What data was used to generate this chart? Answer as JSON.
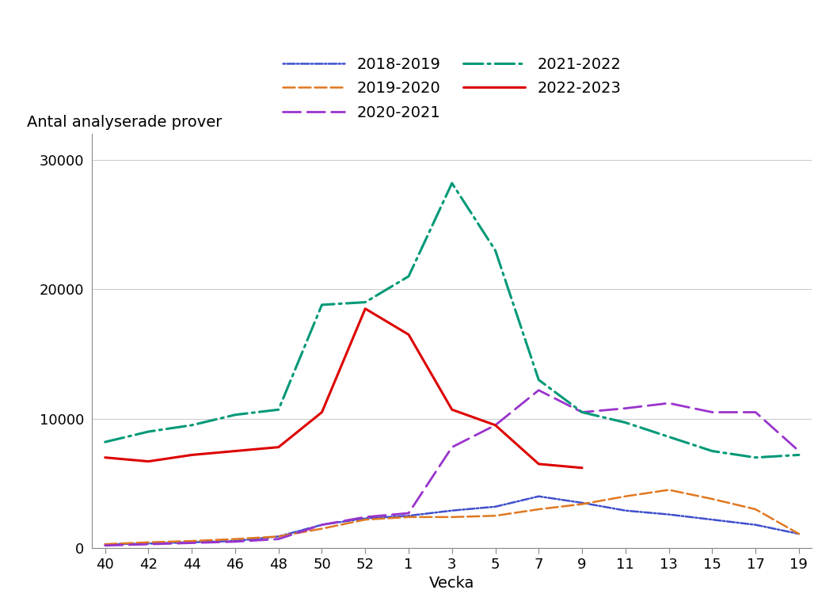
{
  "xlabel": "Vecka",
  "ylabel": "Antal analyserade prover",
  "ylim": [
    0,
    32000
  ],
  "yticks": [
    0,
    10000,
    20000,
    30000
  ],
  "ytick_labels": [
    "0",
    "10000",
    "20000",
    "30000"
  ],
  "x_labels": [
    "40",
    "42",
    "44",
    "46",
    "48",
    "50",
    "52",
    "1",
    "3",
    "5",
    "7",
    "9",
    "11",
    "13",
    "15",
    "17",
    "19"
  ],
  "background_color": "#ffffff",
  "grid_color": "#cccccc",
  "legend_fontsize": 14,
  "axis_fontsize": 14,
  "tick_fontsize": 13,
  "series": [
    {
      "label": "2018-2019",
      "color": "#3f4fcc",
      "linewidth": 1.8,
      "x_labels": [
        "40",
        "42",
        "44",
        "46",
        "48",
        "50",
        "52",
        "1",
        "3",
        "5",
        "7",
        "9",
        "11",
        "13",
        "15",
        "17",
        "19"
      ],
      "values": [
        300,
        350,
        450,
        550,
        900,
        1800,
        2300,
        2500,
        2900,
        3200,
        4000,
        3500,
        2900,
        2600,
        2200,
        1800,
        1100
      ]
    },
    {
      "label": "2019-2020",
      "color": "#e07820",
      "linewidth": 1.8,
      "x_labels": [
        "40",
        "42",
        "44",
        "46",
        "48",
        "50",
        "52",
        "1",
        "3",
        "5",
        "7",
        "9",
        "11",
        "13",
        "15",
        "17",
        "19"
      ],
      "values": [
        300,
        450,
        550,
        700,
        900,
        1500,
        2200,
        2400,
        2400,
        2500,
        3000,
        3400,
        4000,
        4500,
        3800,
        3000,
        1100
      ]
    },
    {
      "label": "2020-2021",
      "color": "#9933cc",
      "linewidth": 2.0,
      "x_labels": [
        "40",
        "42",
        "44",
        "46",
        "48",
        "50",
        "52",
        "1",
        "3",
        "5",
        "7",
        "9",
        "11",
        "13",
        "15",
        "17",
        "19"
      ],
      "values": [
        200,
        300,
        400,
        500,
        700,
        1800,
        2400,
        2700,
        7800,
        9500,
        12200,
        10500,
        10800,
        11200,
        10500,
        10500,
        7500
      ]
    },
    {
      "label": "2021-2022",
      "color": "#009977",
      "linewidth": 2.2,
      "x_labels": [
        "40",
        "42",
        "44",
        "46",
        "48",
        "50",
        "52",
        "1",
        "3",
        "5",
        "7",
        "9",
        "11",
        "13",
        "15",
        "17",
        "19"
      ],
      "values": [
        8200,
        9000,
        9500,
        10300,
        10700,
        18800,
        19000,
        21000,
        28200,
        23000,
        13000,
        10500,
        9700,
        8600,
        7500,
        7000,
        7200
      ]
    },
    {
      "label": "2022-2023",
      "color": "#dd0000",
      "linewidth": 2.2,
      "x_labels": [
        "40",
        "42",
        "44",
        "46",
        "48",
        "50",
        "52",
        "1",
        "3",
        "5",
        "7",
        "9"
      ],
      "values": [
        7000,
        6700,
        7200,
        7500,
        7800,
        10500,
        18500,
        16500,
        10700,
        9500,
        6500,
        6200
      ]
    }
  ]
}
